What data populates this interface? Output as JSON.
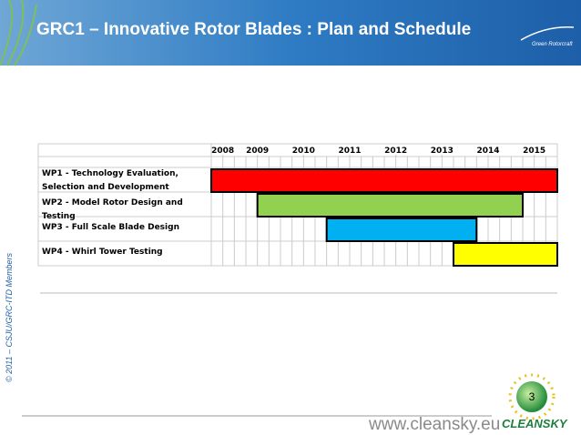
{
  "slide": {
    "title": "GRC1 – Innovative Rotor Blades : Plan and Schedule",
    "logo_text": "Green Rotorcraft",
    "side_note": "© 2011 – CSJU/GRC-ITD Members",
    "website": "www.cleansky.eu",
    "brand": "CLEANSKY",
    "page_number": "3"
  },
  "chart_data": {
    "type": "gantt",
    "xlim": [
      2008.5,
      2016
    ],
    "xticks": [
      {
        "value": 2008.75,
        "label": "2008"
      },
      {
        "value": 2009.5,
        "label": "2009"
      },
      {
        "value": 2010.5,
        "label": "2010"
      },
      {
        "value": 2011.5,
        "label": "2011"
      },
      {
        "value": 2012.5,
        "label": "2012"
      },
      {
        "value": 2013.5,
        "label": "2013"
      },
      {
        "value": 2014.5,
        "label": "2014"
      },
      {
        "value": 2015.5,
        "label": "2015"
      }
    ],
    "tasks": [
      {
        "name": "WP1 - Technology Evaluation, Selection and Development",
        "start": 2008.5,
        "end": 2016,
        "color": "#ff0000"
      },
      {
        "name": "WP2 - Model Rotor Design and Testing",
        "start": 2009.5,
        "end": 2015.25,
        "color": "#92d050"
      },
      {
        "name": "WP3 - Full Scale Blade Design",
        "start": 2011,
        "end": 2014.25,
        "color": "#00b0f0"
      },
      {
        "name": "WP4 - Whirl Tower Testing",
        "start": 2013.75,
        "end": 2016,
        "color": "#ffff00"
      }
    ]
  }
}
